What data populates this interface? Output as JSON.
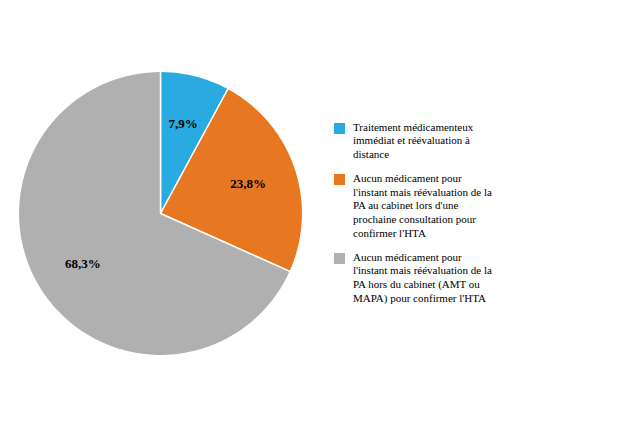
{
  "chart_data": {
    "type": "pie",
    "categories": [
      "Traitement médicamenteux\nimmédiat et réévaluation à\ndistance",
      "Aucun médicament pour\nl'instant mais réévaluation de la\nPA au cabinet lors d'une\nprochaine consultation pour\nconfirmer l'HTA",
      "Aucun médicament pour\nl'instant mais réévaluation de la\nPA hors du cabinet (AMT ou\nMAPA) pour confirmer l'HTA"
    ],
    "values": [
      7.9,
      23.8,
      68.3
    ],
    "value_labels": [
      "7,9%",
      "23,8%",
      "68,3%"
    ],
    "colors": [
      "#29ABE2",
      "#E87722",
      "#B0B0B0"
    ],
    "data_labels": true,
    "legend": "right"
  }
}
